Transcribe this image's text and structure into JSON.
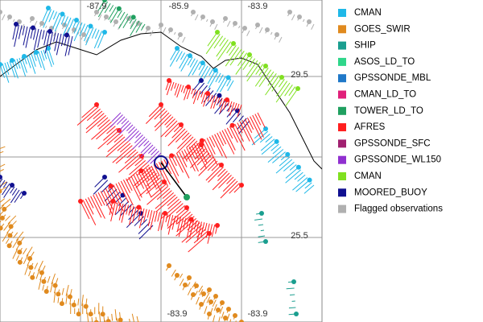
{
  "map": {
    "axis_labels": {
      "top": [
        "-87.9",
        "-85.9",
        "-83.9"
      ],
      "right": [
        "29.5",
        "25.5"
      ],
      "bottom": [
        "-83.9",
        "-83.9"
      ]
    },
    "legend": [
      {
        "label": "CMAN",
        "color": "#1fb8e8"
      },
      {
        "label": "GOES_SWIR",
        "color": "#e08a1e"
      },
      {
        "label": "SHIP",
        "color": "#1a9e8f"
      },
      {
        "label": "ASOS_LD_TO",
        "color": "#2fd68a"
      },
      {
        "label": "GPSSONDE_MBL",
        "color": "#1f78c8"
      },
      {
        "label": "CMAN_LD_TO",
        "color": "#e0207a"
      },
      {
        "label": "TOWER_LD_TO",
        "color": "#20a060"
      },
      {
        "label": "AFRES",
        "color": "#ff1e1e"
      },
      {
        "label": "GPSSONDE_SFC",
        "color": "#a02070"
      },
      {
        "label": "GPSSONDE_WL150",
        "color": "#9030d0"
      },
      {
        "label": "CMAN",
        "color": "#80e020"
      },
      {
        "label": "MOORED_BUOY",
        "color": "#101090"
      },
      {
        "label": "Flagged observations",
        "color": "#b0b0b0"
      }
    ]
  }
}
